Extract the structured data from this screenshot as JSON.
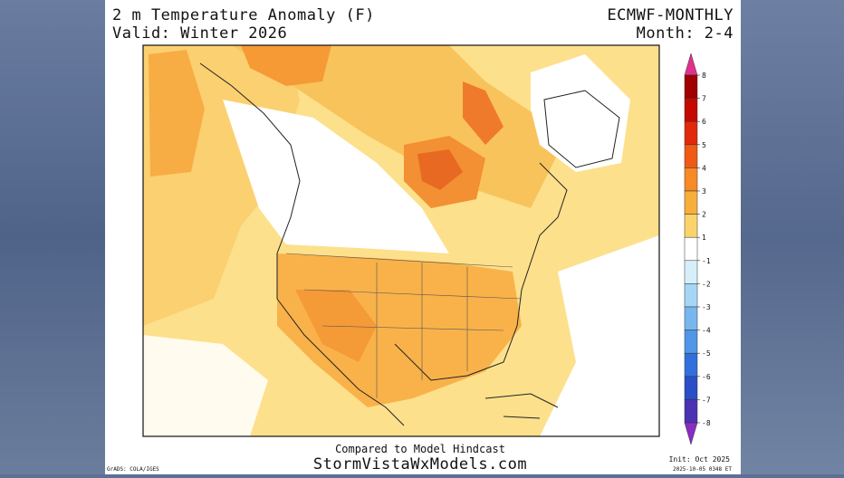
{
  "header": {
    "title": "2 m Temperature Anomaly (F)",
    "valid": "Valid: Winter 2026",
    "model": "ECMWF-MONTHLY",
    "months": "Month: 2-4"
  },
  "footer": {
    "note": "Compared to Model Hindcast",
    "site": "StormVistaWxModels.com",
    "init": "Init: Oct 2025",
    "timestamp": "2025-10-05 0348 ET",
    "credit": "GrADS: COLA/IGES"
  },
  "legend": {
    "ticks": [
      8,
      7,
      6,
      5,
      4,
      3,
      2,
      1,
      -1,
      -2,
      -3,
      -4,
      -5,
      -6,
      -7,
      -8
    ],
    "colors": [
      "#e2308c",
      "#a00000",
      "#c40a00",
      "#e02a0a",
      "#f05a14",
      "#f78a24",
      "#f9ae3c",
      "#fbd36a",
      "#ffffff",
      "#d6effa",
      "#a6d6f6",
      "#78b6ef",
      "#4f96e6",
      "#306fdc",
      "#2a4dc8",
      "#4a32b2",
      "#8a2cc4"
    ]
  }
}
